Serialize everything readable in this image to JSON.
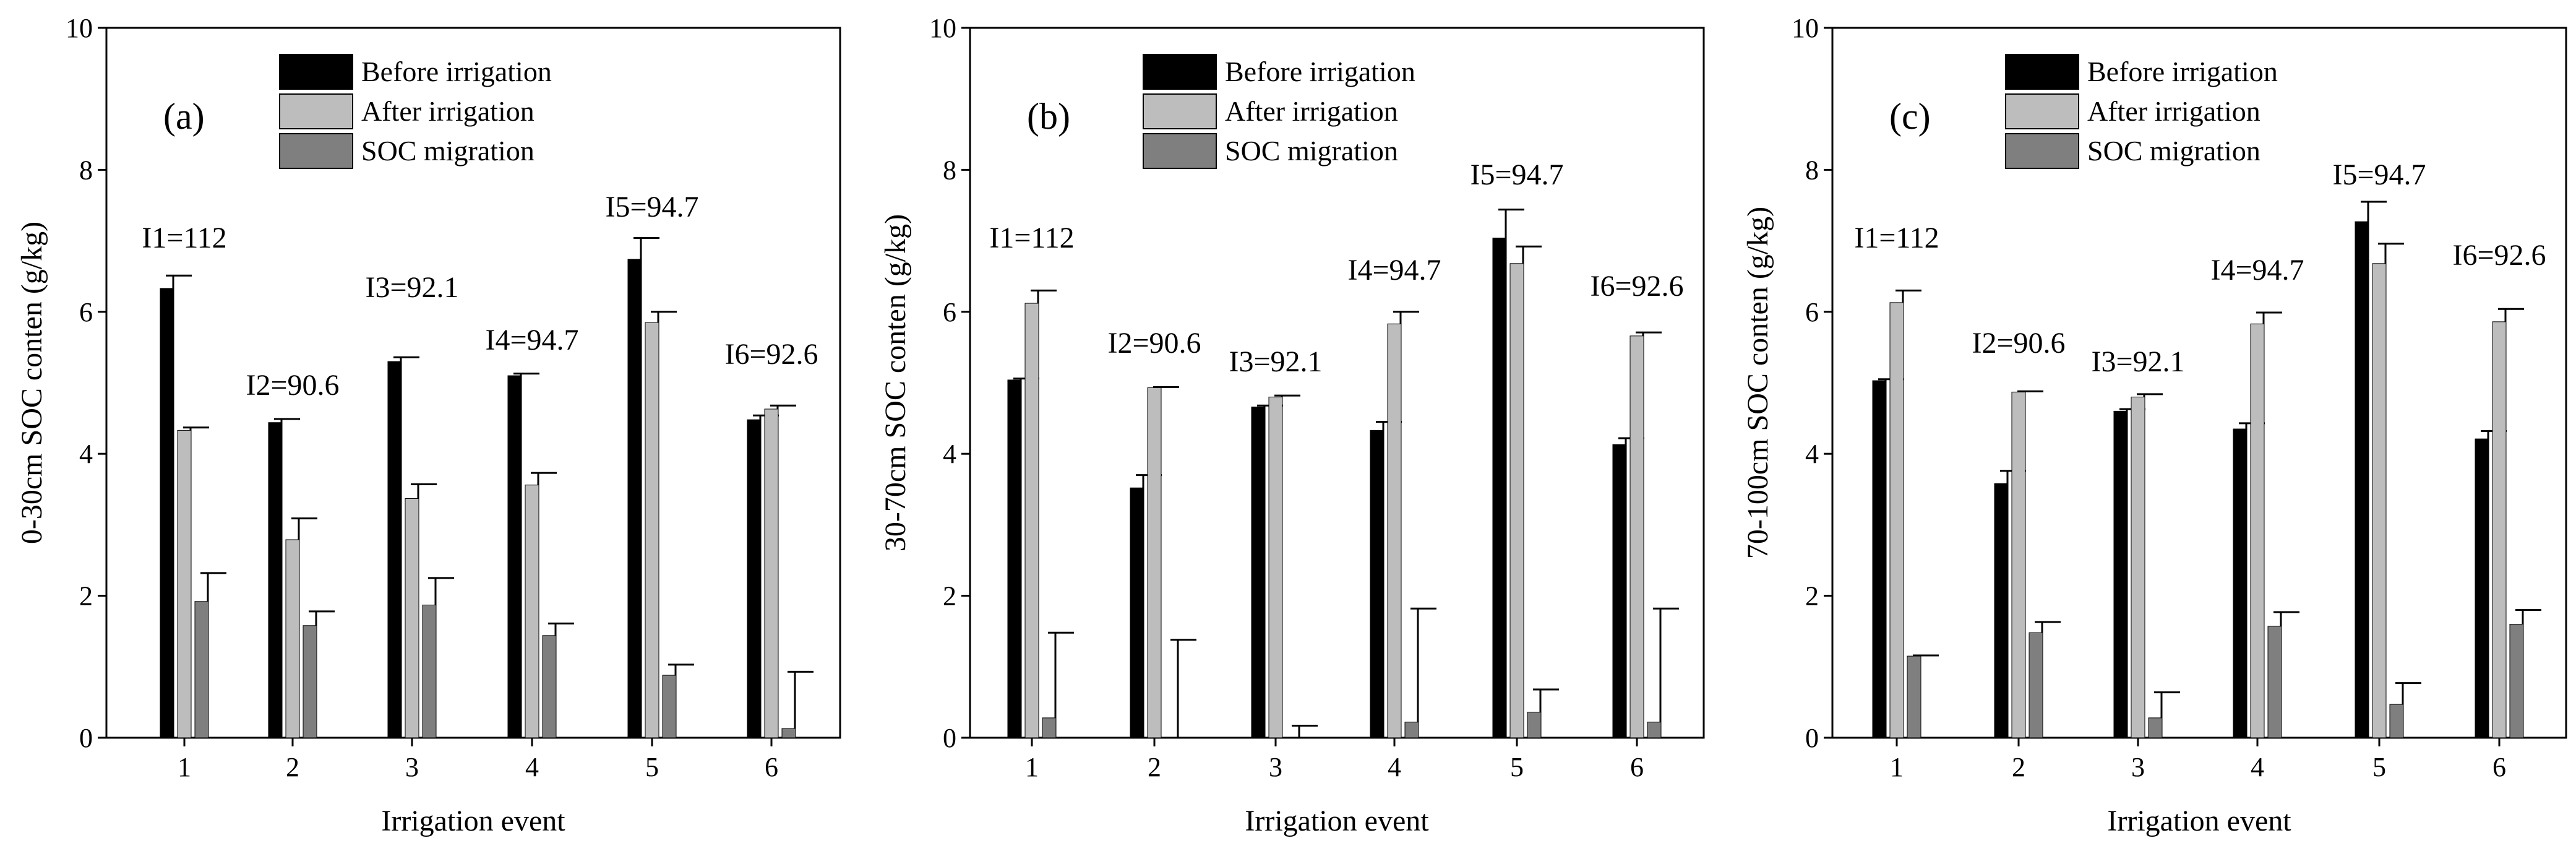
{
  "colors": {
    "before": "#000000",
    "after": "#bdbdbd",
    "migration": "#7f7f7f",
    "axis": "#000000",
    "background": "#ffffff"
  },
  "chart_data": [
    {
      "type": "bar",
      "panel_label": "(a)",
      "title": "",
      "xlabel": "Irrigation event",
      "ylabel": "0-30cm SOC conten (g/kg)",
      "categories": [
        "1",
        "2",
        "3",
        "4",
        "5",
        "6"
      ],
      "ylim": [
        0,
        10
      ],
      "yticks": [
        "0",
        "2",
        "4",
        "6",
        "8",
        "10"
      ],
      "grid": false,
      "legend": "top-center",
      "series": [
        {
          "name": "Before irrigation",
          "values": [
            6.33,
            4.44,
            5.3,
            5.1,
            6.74,
            4.48
          ],
          "errors": [
            0.18,
            0.05,
            0.06,
            0.03,
            0.3,
            0.06
          ]
        },
        {
          "name": "After irrigation",
          "values": [
            4.33,
            2.79,
            3.37,
            3.56,
            5.85,
            4.63
          ],
          "errors": [
            0.04,
            0.3,
            0.2,
            0.17,
            0.15,
            0.05
          ]
        },
        {
          "name": "SOC migration",
          "values": [
            1.92,
            1.58,
            1.87,
            1.44,
            0.88,
            0.13
          ],
          "errors": [
            0.4,
            0.2,
            0.38,
            0.17,
            0.15,
            0.8
          ]
        }
      ],
      "annotations": [
        "I1=112",
        "I2=90.6",
        "I3=92.1",
        "I4=94.7",
        "I5=94.7",
        "I6=92.6"
      ]
    },
    {
      "type": "bar",
      "panel_label": "(b)",
      "title": "",
      "xlabel": "Irrigation event",
      "ylabel": "30-70cm SOC conten (g/kg)",
      "categories": [
        "1",
        "2",
        "3",
        "4",
        "5",
        "6"
      ],
      "ylim": [
        0,
        10
      ],
      "yticks": [
        "0",
        "2",
        "4",
        "6",
        "8",
        "10"
      ],
      "grid": false,
      "legend": "top-center",
      "series": [
        {
          "name": "Before irrigation",
          "values": [
            5.04,
            3.52,
            4.66,
            4.33,
            7.04,
            4.13
          ],
          "errors": [
            0.02,
            0.18,
            0.02,
            0.12,
            0.4,
            0.09
          ]
        },
        {
          "name": "After irrigation",
          "values": [
            6.12,
            4.93,
            4.8,
            5.83,
            6.68,
            5.66
          ],
          "errors": [
            0.18,
            0.01,
            0.02,
            0.17,
            0.24,
            0.05
          ]
        },
        {
          "name": "SOC migration",
          "values": [
            0.28,
            0.0,
            0.0,
            0.22,
            0.36,
            0.22
          ],
          "errors": [
            1.2,
            1.38,
            0.17,
            1.6,
            0.32,
            1.6
          ]
        }
      ],
      "annotations": [
        "I1=112",
        "I2=90.6",
        "I3=92.1",
        "I4=94.7",
        "I5=94.7",
        "I6=92.6"
      ]
    },
    {
      "type": "bar",
      "panel_label": "(c)",
      "title": "",
      "xlabel": "Irrigation event",
      "ylabel": "70-100cm SOC conten (g/kg)",
      "categories": [
        "1",
        "2",
        "3",
        "4",
        "5",
        "6"
      ],
      "ylim": [
        0,
        10
      ],
      "yticks": [
        "0",
        "2",
        "4",
        "6",
        "8",
        "10"
      ],
      "grid": false,
      "legend": "top-center",
      "series": [
        {
          "name": "Before irrigation",
          "values": [
            5.03,
            3.58,
            4.6,
            4.35,
            7.27,
            4.21
          ],
          "errors": [
            0.02,
            0.18,
            0.03,
            0.08,
            0.28,
            0.11
          ]
        },
        {
          "name": "After irrigation",
          "values": [
            6.13,
            4.87,
            4.8,
            5.83,
            6.68,
            5.86
          ],
          "errors": [
            0.17,
            0.01,
            0.04,
            0.16,
            0.28,
            0.18
          ]
        },
        {
          "name": "SOC migration",
          "values": [
            1.15,
            1.48,
            0.28,
            1.57,
            0.47,
            1.6
          ],
          "errors": [
            0.01,
            0.15,
            0.36,
            0.2,
            0.3,
            0.2
          ]
        }
      ],
      "annotations": [
        "I1=112",
        "I2=90.6",
        "I3=92.1",
        "I4=94.7",
        "I5=94.7",
        "I6=92.6"
      ]
    }
  ]
}
